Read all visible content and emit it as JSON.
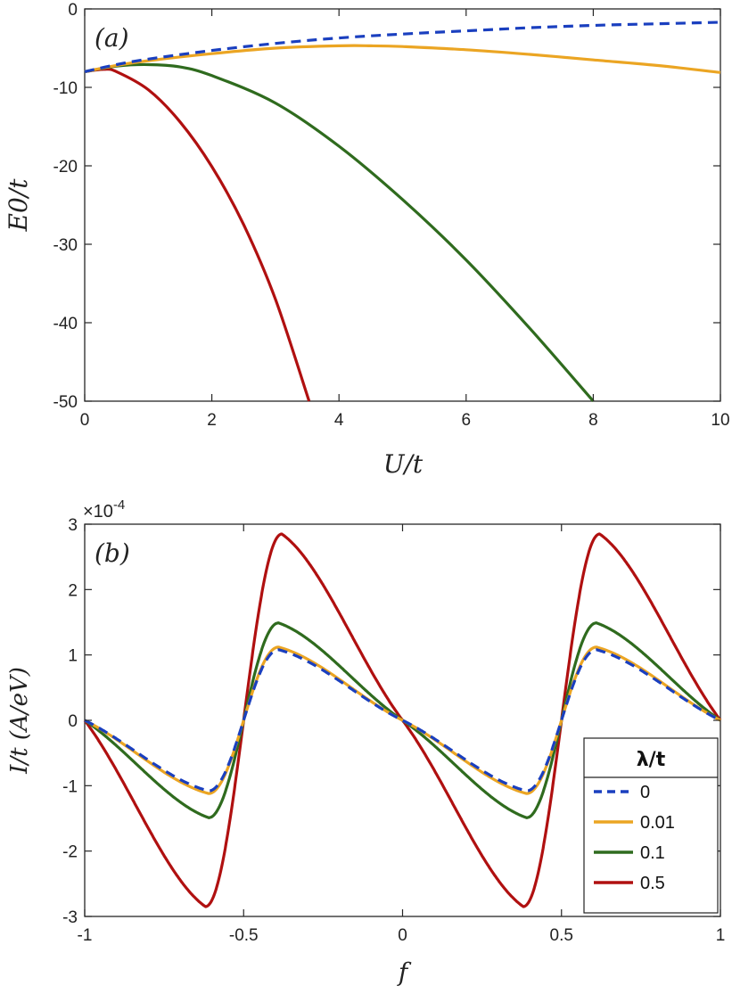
{
  "chart_data": [
    {
      "type": "line",
      "panel_label": "(a)",
      "xlabel": "U/t",
      "ylabel": "E0/t",
      "xlim": [
        0,
        10
      ],
      "ylim": [
        -50,
        0
      ],
      "xticks": [
        "0",
        "2",
        "4",
        "6",
        "8",
        "10"
      ],
      "yticks": [
        "0",
        "-10",
        "-20",
        "-30",
        "-40",
        "-50"
      ],
      "grid": false,
      "series": [
        {
          "name": "0",
          "color": "#1a3fbf",
          "style": "dashed",
          "x": [
            0,
            0.5,
            1,
            2,
            3,
            4,
            5,
            6,
            7,
            8,
            9,
            10
          ],
          "y": [
            -8.0,
            -7.1,
            -6.4,
            -5.3,
            -4.4,
            -3.7,
            -3.2,
            -2.8,
            -2.4,
            -2.1,
            -1.9,
            -1.7
          ]
        },
        {
          "name": "0.01",
          "color": "#eba523",
          "style": "solid",
          "x": [
            0,
            0.5,
            1,
            2,
            3,
            4,
            4.5,
            5,
            6,
            7,
            8,
            9,
            10
          ],
          "y": [
            -8.0,
            -7.2,
            -6.6,
            -5.7,
            -5.0,
            -4.7,
            -4.7,
            -4.8,
            -5.2,
            -5.8,
            -6.5,
            -7.2,
            -8.1
          ]
        },
        {
          "name": "0.1",
          "color": "#2f6b1e",
          "style": "solid",
          "x": [
            0,
            0.5,
            1,
            1.5,
            2,
            3,
            4,
            5,
            6,
            7,
            8
          ],
          "y": [
            -8.0,
            -7.3,
            -7.1,
            -7.4,
            -8.5,
            -12.0,
            -17.5,
            -24.3,
            -32.0,
            -40.7,
            -50.0
          ]
        },
        {
          "name": "0.5",
          "color": "#b01010",
          "style": "solid",
          "x": [
            0,
            0.3,
            0.5,
            1,
            1.5,
            2,
            2.5,
            3,
            3.53
          ],
          "y": [
            -8.0,
            -7.7,
            -8.0,
            -10.3,
            -14.4,
            -20.1,
            -27.5,
            -37.0,
            -50.0
          ]
        }
      ]
    },
    {
      "type": "line",
      "panel_label": "(b)",
      "xlabel": "f",
      "ylabel": "I/t (A/eV)",
      "multiplier": "×10",
      "multiplier_exp": "-4",
      "xlim": [
        -1,
        1
      ],
      "ylim": [
        -3,
        3
      ],
      "xticks": [
        "-1",
        "-0.5",
        "0",
        "0.5",
        "1"
      ],
      "yticks": [
        "3",
        "2",
        "1",
        "0",
        "-1",
        "-2",
        "-3"
      ],
      "grid": false,
      "legend": {
        "title": "λ/t",
        "position": "bottom-right",
        "entries": [
          "0",
          "0.01",
          "0.1",
          "0.5"
        ]
      },
      "series": [
        {
          "name": "0",
          "color": "#1a3fbf",
          "style": "dashed",
          "amplitude": 1.08,
          "peak_f": 0.61
        },
        {
          "name": "0.01",
          "color": "#eba523",
          "style": "solid",
          "amplitude": 1.12,
          "peak_f": 0.61
        },
        {
          "name": "0.1",
          "color": "#2f6b1e",
          "style": "solid",
          "amplitude": 1.49,
          "peak_f": 0.61
        },
        {
          "name": "0.5",
          "color": "#b01010",
          "style": "solid",
          "amplitude": 2.85,
          "peak_f": 0.62
        }
      ]
    }
  ]
}
